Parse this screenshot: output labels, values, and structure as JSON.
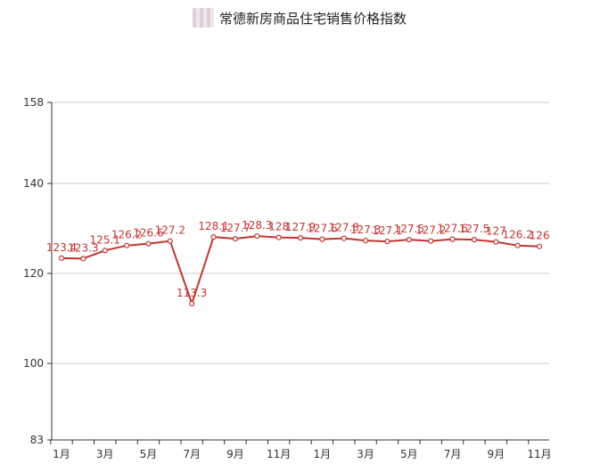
{
  "chart_data": {
    "type": "line",
    "title": "常德新房商品住宅销售价格指数",
    "series_color": "#c23531",
    "grid": "horizontal",
    "ylim": [
      83,
      158
    ],
    "y_ticks": [
      83,
      100,
      120,
      140,
      158
    ],
    "x_tick_labels": [
      "1月",
      "3月",
      "5月",
      "7月",
      "9月",
      "11月",
      "1月",
      "3月",
      "5月",
      "7月",
      "9月",
      "11月"
    ],
    "categories": [
      "1月",
      "2月",
      "3月",
      "4月",
      "5月",
      "6月",
      "7月",
      "8月",
      "9月",
      "10月",
      "11月",
      "12月",
      "1月",
      "2月",
      "3月",
      "4月",
      "5月",
      "6月",
      "7月",
      "8月",
      "9月",
      "10月",
      "11月"
    ],
    "values": [
      123.4,
      123.3,
      125.1,
      126.2,
      126.6,
      127.2,
      113.3,
      128.1,
      127.7,
      128.3,
      128,
      127.9,
      127.6,
      127.8,
      127.3,
      127.1,
      127.5,
      127.2,
      127.6,
      127.5,
      127,
      126.2,
      126
    ],
    "data_labels": [
      "123.4",
      "123.3",
      "125.1",
      "126.2",
      "126.6",
      "127.2",
      "113.3",
      "128.1",
      "127.7",
      "128.3",
      "128",
      "127.9",
      "127.6",
      "127.8",
      "127.3",
      "127.1",
      "127.5",
      "127.2",
      "127.6",
      "127.5",
      "127",
      "126.2",
      "126"
    ]
  }
}
